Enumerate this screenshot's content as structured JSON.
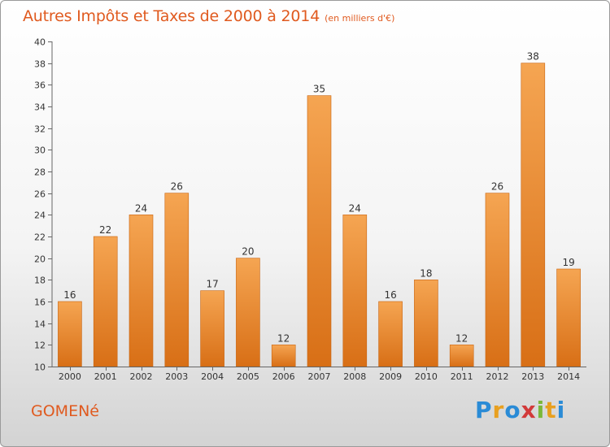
{
  "title": "Autres Impôts et Taxes de 2000 à 2014",
  "subtitle": "(en milliers d'€)",
  "commune": "GOMENé",
  "brand": {
    "text": "Proxiti",
    "colors": [
      "#2a8bd6",
      "#e8a020",
      "#2a8bd6",
      "#d23a3a",
      "#7ab83a",
      "#e8a020",
      "#2a8bd6"
    ]
  },
  "colors": {
    "bar_light": "#f5a552",
    "bar_dark": "#d86f16",
    "title": "#e05a1f"
  },
  "chart_data": {
    "type": "bar",
    "title": "Autres Impôts et Taxes de 2000 à 2014",
    "subtitle": "(en milliers d'€)",
    "categories": [
      "2000",
      "2001",
      "2002",
      "2003",
      "2004",
      "2005",
      "2006",
      "2007",
      "2008",
      "2009",
      "2010",
      "2011",
      "2012",
      "2013",
      "2014"
    ],
    "values": [
      16,
      22,
      24,
      26,
      17,
      20,
      12,
      35,
      24,
      16,
      18,
      12,
      26,
      38,
      19
    ],
    "ylim": [
      10,
      40
    ],
    "yticks": [
      10,
      12,
      14,
      16,
      18,
      20,
      22,
      24,
      26,
      28,
      30,
      32,
      34,
      36,
      38,
      40
    ],
    "xlabel": "",
    "ylabel": "",
    "grid": false,
    "data_labels": true
  }
}
